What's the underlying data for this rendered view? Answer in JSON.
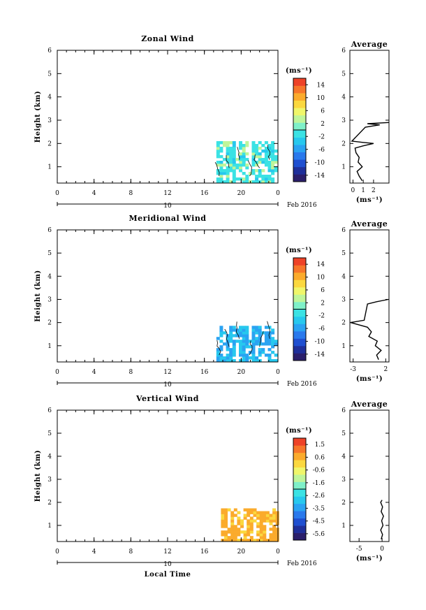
{
  "xlabel": "Local Time",
  "day_label": "10",
  "date_label": "Feb 2016",
  "unit_label": "(ms⁻¹)",
  "avg_title": "Average",
  "ylabel": "Height (km)",
  "x_ticks": [
    "0",
    "4",
    "8",
    "12",
    "16",
    "20",
    "0"
  ],
  "y_ticks": [
    "1",
    "2",
    "3",
    "4",
    "5",
    "6"
  ],
  "colormap": [
    "#2b1f6b",
    "#1f2f9a",
    "#1f4fd0",
    "#2a79ec",
    "#2aa3f2",
    "#27c8ee",
    "#3be2e4",
    "#7ff0c8",
    "#bff59a",
    "#f0f66a",
    "#fbd83f",
    "#fbab2c",
    "#f7762a",
    "#ee4227"
  ],
  "chart_data": [
    {
      "type": "heatmap",
      "title": "Zonal Wind",
      "xlim": [
        0,
        24
      ],
      "ylim": [
        0.3,
        6
      ],
      "x_ticks": [
        0,
        4,
        8,
        12,
        16,
        20,
        24
      ],
      "y_ticks": [
        1,
        2,
        3,
        4,
        5,
        6
      ],
      "colorbar": {
        "range": [
          -16,
          16
        ],
        "ticks": [
          "14",
          "10",
          "6",
          "2",
          "-2",
          "-6",
          "-10",
          "-14"
        ]
      },
      "data_region": {
        "x": [
          17.3,
          24
        ],
        "y": [
          0.3,
          2.0
        ]
      },
      "dominant_value": -1.5,
      "average_profile": {
        "xlim": [
          -0.3,
          3.5
        ],
        "x_ticks": [
          "0",
          "1",
          "2"
        ],
        "heights": [
          0.4,
          0.6,
          0.8,
          1.0,
          1.2,
          1.4,
          1.6,
          1.8,
          1.9,
          2.0,
          2.05,
          2.1,
          2.7,
          2.8,
          2.85,
          2.9
        ],
        "values": [
          0.9,
          0.6,
          0.4,
          0.9,
          0.5,
          0.6,
          0.3,
          0.2,
          1.0,
          2.0,
          0.9,
          -0.1,
          1.2,
          2.6,
          1.4,
          3.5
        ]
      }
    },
    {
      "type": "heatmap",
      "title": "Meridional Wind",
      "xlim": [
        0,
        24
      ],
      "ylim": [
        0.3,
        6
      ],
      "x_ticks": [
        0,
        4,
        8,
        12,
        16,
        20,
        24
      ],
      "y_ticks": [
        1,
        2,
        3,
        4,
        5,
        6
      ],
      "colorbar": {
        "range": [
          -16,
          16
        ],
        "ticks": [
          "14",
          "10",
          "6",
          "2",
          "-2",
          "-6",
          "-10",
          "-14"
        ]
      },
      "data_region": {
        "x": [
          17.3,
          24
        ],
        "y": [
          0.3,
          1.8
        ]
      },
      "dominant_value": -4,
      "average_profile": {
        "xlim": [
          -3.5,
          2.5
        ],
        "x_ticks": [
          "-3",
          "2"
        ],
        "heights": [
          0.4,
          0.6,
          0.8,
          1.0,
          1.2,
          1.4,
          1.6,
          1.8,
          1.9,
          2.0,
          2.1,
          2.8,
          2.9,
          3.0
        ],
        "values": [
          0.9,
          0.6,
          1.3,
          0.4,
          0.7,
          -0.6,
          -0.2,
          -0.8,
          -2.1,
          -3.4,
          -1.3,
          -0.8,
          0.6,
          2.4
        ]
      }
    },
    {
      "type": "heatmap",
      "title": "Vertical Wind",
      "xlim": [
        0,
        24
      ],
      "ylim": [
        0.3,
        6
      ],
      "x_ticks": [
        0,
        4,
        8,
        12,
        16,
        20,
        24
      ],
      "y_ticks": [
        1,
        2,
        3,
        4,
        5,
        6
      ],
      "colorbar": {
        "range": [
          -6,
          2
        ],
        "ticks": [
          "1.5",
          "0.6",
          "-0.6",
          "-1.6",
          "-2.6",
          "-3.5",
          "-4.5",
          "-5.6"
        ]
      },
      "data_region": {
        "x": [
          17.8,
          24
        ],
        "y": [
          0.3,
          1.7
        ]
      },
      "dominant_value": 0.5,
      "average_profile": {
        "xlim": [
          -7,
          1.5
        ],
        "x_ticks": [
          "-5",
          "0"
        ],
        "heights": [
          0.4,
          0.6,
          0.8,
          1.0,
          1.2,
          1.4,
          1.6,
          1.8,
          2.0,
          2.1
        ],
        "values": [
          -0.2,
          0.1,
          -0.3,
          0.2,
          -0.1,
          0.3,
          -0.2,
          0.1,
          -0.3,
          0.0
        ]
      }
    }
  ]
}
